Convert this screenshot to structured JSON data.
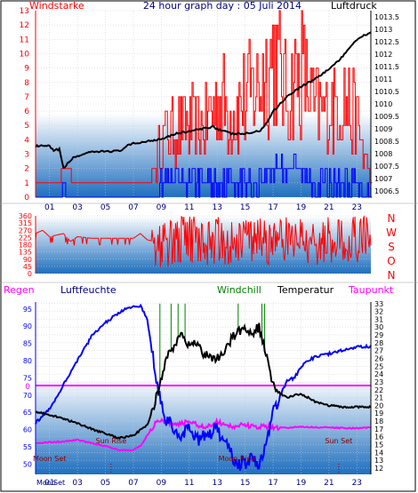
{
  "colors": {
    "red": "#ff0000",
    "blue": "#0000ff",
    "black": "#000000",
    "green": "#008000",
    "magenta": "#ff00ff",
    "darkred": "#8b0000",
    "title_blue": "#000080",
    "panel_top": "#ffffff",
    "panel_bottom": "#1e6fbf"
  },
  "header": {
    "left_label": "Windstarke",
    "title": "24 hour graph day : 05 Juli 2014",
    "right_label": "Luftdruck"
  },
  "chart_data": [
    {
      "type": "line",
      "title": "24 hour graph day : 05 Juli 2014",
      "x_ticks": [
        "01",
        "03",
        "05",
        "07",
        "09",
        "11",
        "13",
        "15",
        "17",
        "19",
        "21",
        "23"
      ],
      "y_left_label": "Windstarke",
      "y_left_ticks": [
        0,
        1,
        2,
        3,
        4,
        5,
        6,
        7,
        8,
        9,
        10,
        11,
        12,
        13
      ],
      "y_left_range": [
        0,
        13
      ],
      "y_right_label": "Luftdruck",
      "y_right_ticks": [
        "1006.5",
        "1007",
        "1007.5",
        "1008",
        "1008.5",
        "1009",
        "1009.5",
        "1010",
        "1010.5",
        "1011",
        "1011.5",
        "1012",
        "1012.5",
        "1013",
        "1013.5"
      ],
      "y_right_range": [
        1006.25,
        1013.75
      ],
      "series": [
        {
          "key": "pressure",
          "color": "#000000",
          "x": [
            0,
            0.5,
            1,
            1.3,
            1.7,
            2,
            2.3,
            2.6,
            3,
            3.5,
            4,
            5,
            6,
            6.5,
            7,
            8,
            9,
            10,
            11,
            12,
            12.7,
            13,
            14,
            15,
            16,
            16.5,
            17,
            18,
            19,
            20,
            21,
            22,
            22.5,
            23,
            24
          ],
          "y": [
            1008.3,
            1008.3,
            1008.3,
            1008.1,
            1008.2,
            1007.4,
            1007.6,
            1007.8,
            1007.9,
            1008.0,
            1008.05,
            1008.1,
            1008.1,
            1008.3,
            1008.4,
            1008.5,
            1008.6,
            1008.8,
            1008.9,
            1009.0,
            1009.1,
            1009.0,
            1008.8,
            1008.8,
            1008.9,
            1009.2,
            1009.7,
            1010.3,
            1010.7,
            1011.0,
            1011.4,
            1011.9,
            1012.3,
            1012.6,
            1012.9
          ]
        },
        {
          "key": "wind_gust",
          "color": "#ff0000",
          "x": [
            0,
            0.5,
            1.6,
            2,
            3,
            3.5,
            4,
            8,
            8.5,
            9,
            10,
            11,
            12,
            13,
            14,
            15,
            16,
            17,
            18,
            19,
            20,
            21,
            22,
            23,
            24
          ],
          "y": [
            1,
            1,
            1,
            2,
            1,
            1,
            1,
            1,
            2,
            4,
            5,
            5,
            5,
            7,
            6,
            7,
            8,
            10,
            7,
            9,
            6,
            6,
            7,
            5,
            1
          ]
        },
        {
          "key": "wind_avg",
          "color": "#0000ff",
          "x": [
            0,
            1.7,
            2,
            2.3,
            2.6,
            8.5,
            9,
            10,
            12,
            14,
            16,
            17,
            18,
            20,
            22,
            24
          ],
          "y": [
            0,
            0,
            1,
            0,
            0,
            0,
            1,
            1,
            1,
            1,
            1,
            2,
            2,
            1,
            1,
            0
          ]
        }
      ]
    },
    {
      "type": "scatter",
      "y_ticks": [
        0,
        45,
        90,
        135,
        180,
        225,
        270,
        315,
        360
      ],
      "y_range": [
        0,
        360
      ],
      "right_labels": [
        "N",
        "W",
        "S",
        "O",
        "N"
      ],
      "series": [
        {
          "key": "wind_direction",
          "color": "#ff0000",
          "x": [
            0,
            0.5,
            1,
            1.5,
            2,
            2.5,
            3,
            4,
            5,
            6,
            7,
            7.5,
            8,
            8.5,
            9,
            10,
            11,
            12,
            13,
            14,
            15,
            16,
            17,
            18,
            19,
            20,
            21,
            22,
            23,
            24
          ],
          "y": [
            250,
            270,
            230,
            240,
            250,
            200,
            230,
            220,
            220,
            220,
            220,
            250,
            210,
            200,
            180,
            200,
            220,
            190,
            210,
            200,
            220,
            200,
            190,
            210,
            220,
            200,
            210,
            200,
            220,
            210
          ]
        }
      ]
    },
    {
      "type": "line",
      "x_ticks": [
        "01",
        "03",
        "05",
        "07",
        "09",
        "11",
        "13",
        "15",
        "17",
        "19",
        "21",
        "23"
      ],
      "labels": {
        "regen": "Regen",
        "luftfeuchte": "Luftfeuchte",
        "windchill": "Windchill",
        "temperatur": "Temperatur",
        "taupunkt": "Taupunkt"
      },
      "y_left_ticks": [
        50,
        55,
        60,
        65,
        70,
        75,
        80,
        85,
        90,
        95
      ],
      "y_left_range": [
        47,
        97
      ],
      "y_right_ticks": [
        12,
        13,
        14,
        15,
        16,
        17,
        18,
        19,
        20,
        21,
        22,
        23,
        24,
        25,
        26,
        27,
        28,
        29,
        30,
        31,
        32,
        33
      ],
      "y_right_range": [
        11.2,
        33.2
      ],
      "rain_marker": "0",
      "annotations": [
        {
          "text": "Moon Set",
          "x": 1.0,
          "y_pct": 51.5
        },
        {
          "text": "Sun Rise",
          "x": 5.4,
          "y_pct": 57.5
        },
        {
          "text": "Moon Rise",
          "x": 14.4,
          "y_pct": 51.5
        },
        {
          "text": "Sun Set",
          "x": 21.7,
          "y_pct": 57.5
        }
      ],
      "bottom_labels": {
        "moonrise": "Moon",
        "moonset": "Set"
      },
      "series": [
        {
          "key": "humidity",
          "color": "#0000ff",
          "axis": "left",
          "x": [
            0,
            1,
            2,
            3,
            4,
            5,
            6,
            6.5,
            7,
            7.5,
            8,
            8.3,
            8.6,
            9,
            9.3,
            9.6,
            10,
            10.5,
            11,
            11.5,
            12,
            13,
            13.5,
            14,
            14.5,
            15,
            15.5,
            16,
            16.5,
            17,
            17.5,
            18,
            18.5,
            19,
            19.5,
            20,
            21,
            22,
            23,
            24
          ],
          "y": [
            62,
            66,
            73,
            80,
            87,
            91,
            94,
            95,
            96,
            96,
            92,
            84,
            75,
            67,
            63,
            62,
            60,
            58,
            60,
            57,
            58,
            60,
            56,
            53,
            50,
            50,
            52,
            50,
            55,
            65,
            70,
            74,
            75,
            78,
            80,
            81,
            82,
            83,
            84,
            84
          ]
        },
        {
          "key": "temperature",
          "color": "#000000",
          "axis": "right",
          "x": [
            0,
            1,
            2,
            3,
            4,
            5,
            6,
            7,
            8,
            8.5,
            9,
            9.5,
            10,
            10.5,
            11,
            11.5,
            12,
            13,
            13.5,
            14,
            14.5,
            15,
            15.5,
            16,
            16.5,
            17,
            17.5,
            18,
            19,
            20,
            21,
            22,
            23,
            24
          ],
          "y": [
            19.2,
            18.8,
            18.3,
            17.7,
            17.0,
            16.4,
            15.8,
            16.2,
            17.5,
            20.0,
            23.5,
            26.5,
            28.0,
            29.0,
            27.5,
            28.3,
            26.5,
            26.0,
            26.5,
            28.5,
            29.5,
            29.7,
            29.3,
            30.0,
            26.5,
            22.5,
            21.5,
            21.0,
            21.5,
            20.5,
            20.0,
            19.8,
            19.8,
            19.8
          ]
        },
        {
          "key": "dewpoint",
          "color": "#ff00ff",
          "axis": "right",
          "x": [
            0,
            1,
            2,
            3,
            4,
            5,
            6,
            7,
            7.5,
            8,
            8.5,
            9,
            10,
            11,
            12,
            13,
            14,
            15,
            16,
            17,
            18,
            19,
            20,
            21,
            22,
            23,
            24
          ],
          "y": [
            15.2,
            15.3,
            15.4,
            15.6,
            15.2,
            14.8,
            14.3,
            14.3,
            14.8,
            16.2,
            17.6,
            18.0,
            17.6,
            17.9,
            17.3,
            17.8,
            17.3,
            17.5,
            17.2,
            17.3,
            17.1,
            17.3,
            17.2,
            17.2,
            17.1,
            17.1,
            17.2
          ]
        },
        {
          "key": "windchill_spikes",
          "color": "#008000",
          "axis": "right",
          "x": [
            8.9,
            9.7,
            10.2,
            10.7,
            14.5,
            16.2,
            16.4
          ],
          "y": [
            33.0,
            33.0,
            33.0,
            33.0,
            33.0,
            33.0,
            33.0
          ]
        }
      ]
    }
  ]
}
